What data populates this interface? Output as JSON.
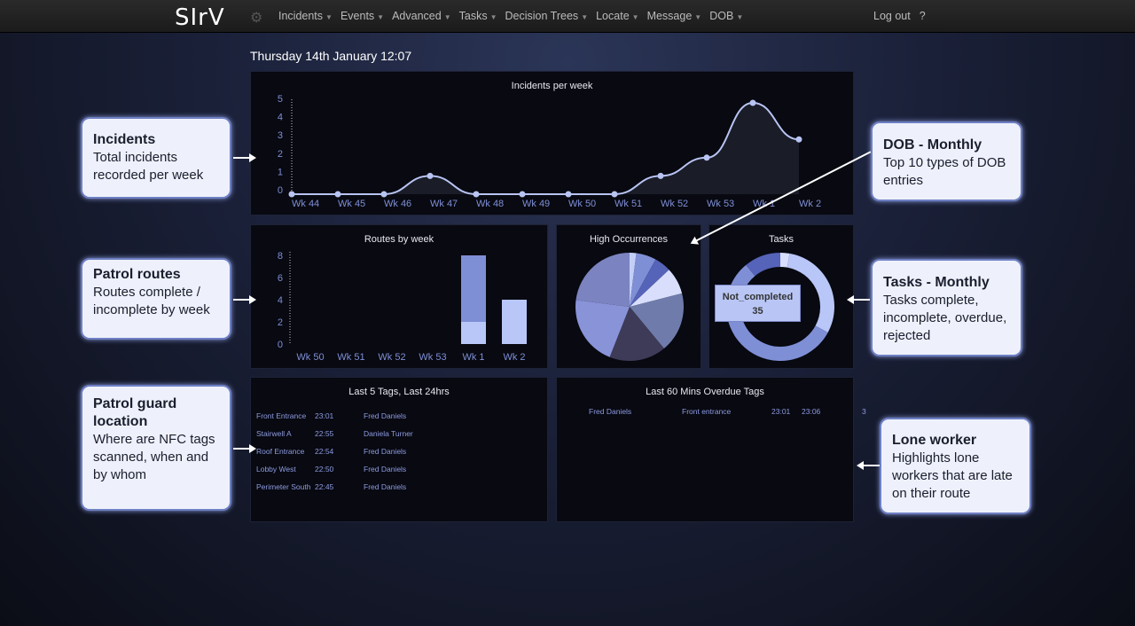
{
  "nav": {
    "logo": "SIrV",
    "items": [
      "Incidents",
      "Events",
      "Advanced",
      "Tasks",
      "Decision Trees",
      "Locate",
      "Message",
      "DOB"
    ],
    "logout": "Log out",
    "help": "?"
  },
  "date": "Thursday 14th January 12:07",
  "chart_data": [
    {
      "type": "area",
      "title": "Incidents per week",
      "categories": [
        "Wk 44",
        "Wk 45",
        "Wk 46",
        "Wk 47",
        "Wk 48",
        "Wk 49",
        "Wk 50",
        "Wk 51",
        "Wk 52",
        "Wk 53",
        "Wk 1",
        "Wk 2"
      ],
      "values": [
        0,
        0,
        0,
        1,
        0,
        0,
        0,
        0,
        1,
        2,
        5,
        3
      ],
      "yticks": [
        0,
        1,
        2,
        3,
        4,
        5
      ],
      "ylim": [
        0,
        5
      ],
      "color": "#b8c4f2"
    },
    {
      "type": "bar",
      "title": "Routes by week",
      "stacked": true,
      "categories": [
        "Wk 50",
        "Wk 51",
        "Wk 52",
        "Wk 53",
        "Wk 1",
        "Wk 2"
      ],
      "series": [
        {
          "values": [
            0,
            0,
            0,
            0,
            2,
            4
          ],
          "color": "#b9c6f8"
        },
        {
          "values": [
            0,
            0,
            0,
            0,
            6,
            0
          ],
          "color": "#7f8fd6"
        }
      ],
      "yticks": [
        0,
        2,
        4,
        6,
        8
      ],
      "ylim": [
        0,
        8
      ]
    },
    {
      "type": "pie",
      "title": "High Occurrences",
      "values": [
        2,
        6,
        5,
        8,
        18,
        17,
        21,
        23
      ],
      "colors": [
        "#c4cff8",
        "#7f8fd6",
        "#5563b8",
        "#d8defc",
        "#6f7cab",
        "#3e3b58",
        "#8993d8",
        "#7b84c0"
      ]
    },
    {
      "type": "pie",
      "title": "Tasks",
      "donut": true,
      "values": [
        2,
        22,
        35,
        6,
        8
      ],
      "colors": [
        "#d8defc",
        "#b9c6f8",
        "#7f8fd6",
        "#7f8fd6",
        "#5563b8"
      ],
      "tooltip": {
        "label": "Not_completed",
        "value": "35"
      }
    }
  ],
  "tags": {
    "title": "Last 5 Tags, Last 24hrs",
    "rows": [
      [
        "Front Entrance",
        "23:01",
        "Fred Daniels"
      ],
      [
        "Stairwell A",
        "22:55",
        "Daniela Turner"
      ],
      [
        "Roof Entrance",
        "22:54",
        "Fred Daniels"
      ],
      [
        "Lobby West",
        "22:50",
        "Fred Daniels"
      ],
      [
        "Perimeter South",
        "22:45",
        "Fred Daniels"
      ]
    ]
  },
  "overdue": {
    "title": "Last 60 Mins Overdue Tags",
    "rows": [
      [
        "Fred Daniels",
        "Front entrance",
        "23:01",
        "23:06",
        "3"
      ]
    ]
  },
  "callouts": {
    "incidents": {
      "title": "Incidents",
      "text": "Total incidents recorded per week"
    },
    "routes": {
      "title": "Patrol routes",
      "text": "Routes complete / incomplete by week"
    },
    "guard": {
      "title": "Patrol guard location",
      "text": "Where are NFC tags scanned, when and by whom"
    },
    "dob": {
      "title": "DOB - Monthly",
      "text": "Top 10 types of DOB entries"
    },
    "tasks": {
      "title": "Tasks - Monthly",
      "text": "Tasks complete, incomplete, overdue, rejected"
    },
    "lone": {
      "title": "Lone worker",
      "text": "Highlights lone workers that are late on their route"
    }
  }
}
